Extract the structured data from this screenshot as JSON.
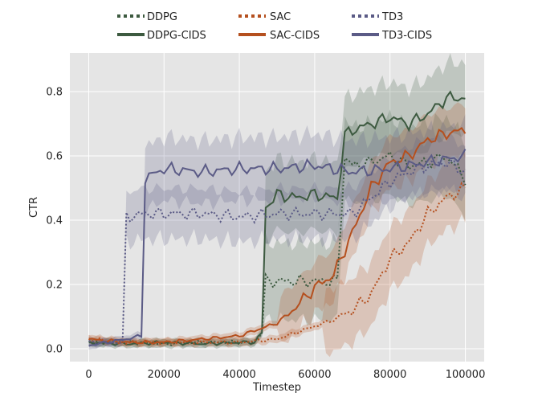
{
  "chart_data": {
    "type": "line",
    "title": "",
    "xlabel": "Timestep",
    "ylabel": "CTR",
    "xlim": [
      -5000,
      105000
    ],
    "ylim": [
      -0.04,
      0.92
    ],
    "xticks": [
      0,
      20000,
      40000,
      60000,
      80000,
      100000
    ],
    "xtick_labels": [
      "0",
      "20000",
      "40000",
      "60000",
      "80000",
      "100000"
    ],
    "yticks": [
      0.0,
      0.2,
      0.4,
      0.6,
      0.8
    ],
    "ytick_labels": [
      "0.0",
      "0.2",
      "0.4",
      "0.6",
      "0.8"
    ],
    "grid": true,
    "legend_position": "top-center",
    "series": [
      {
        "name": "DDPG",
        "color": "#3d5a40",
        "style": "dotted",
        "points": [
          [
            0,
            0.02
          ],
          [
            10000,
            0.02
          ],
          [
            20000,
            0.015
          ],
          [
            30000,
            0.02
          ],
          [
            40000,
            0.02
          ],
          [
            44000,
            0.02
          ],
          [
            46000,
            0.05
          ],
          [
            47000,
            0.21
          ],
          [
            50000,
            0.21
          ],
          [
            55000,
            0.21
          ],
          [
            60000,
            0.21
          ],
          [
            65000,
            0.21
          ],
          [
            66500,
            0.21
          ],
          [
            67500,
            0.6
          ],
          [
            70000,
            0.57
          ],
          [
            75000,
            0.58
          ],
          [
            80000,
            0.6
          ],
          [
            85000,
            0.57
          ],
          [
            90000,
            0.58
          ],
          [
            95000,
            0.6
          ],
          [
            100000,
            0.53
          ]
        ],
        "band": 0.12
      },
      {
        "name": "DDPG-CIDS",
        "color": "#3d5a40",
        "style": "solid",
        "points": [
          [
            0,
            0.02
          ],
          [
            10000,
            0.015
          ],
          [
            20000,
            0.02
          ],
          [
            30000,
            0.015
          ],
          [
            40000,
            0.02
          ],
          [
            44000,
            0.02
          ],
          [
            46000,
            0.05
          ],
          [
            47000,
            0.44
          ],
          [
            50000,
            0.48
          ],
          [
            55000,
            0.47
          ],
          [
            60000,
            0.48
          ],
          [
            65000,
            0.47
          ],
          [
            66500,
            0.47
          ],
          [
            67500,
            0.66
          ],
          [
            70000,
            0.68
          ],
          [
            75000,
            0.7
          ],
          [
            80000,
            0.72
          ],
          [
            85000,
            0.7
          ],
          [
            90000,
            0.73
          ],
          [
            95000,
            0.78
          ],
          [
            100000,
            0.78
          ]
        ],
        "band": 0.11
      },
      {
        "name": "SAC",
        "color": "#b5501f",
        "style": "dotted",
        "points": [
          [
            0,
            0.03
          ],
          [
            10000,
            0.02
          ],
          [
            20000,
            0.02
          ],
          [
            30000,
            0.02
          ],
          [
            40000,
            0.02
          ],
          [
            50000,
            0.03
          ],
          [
            55000,
            0.05
          ],
          [
            60000,
            0.07
          ],
          [
            65000,
            0.09
          ],
          [
            70000,
            0.12
          ],
          [
            75000,
            0.17
          ],
          [
            80000,
            0.28
          ],
          [
            85000,
            0.33
          ],
          [
            90000,
            0.42
          ],
          [
            95000,
            0.47
          ],
          [
            100000,
            0.5
          ]
        ],
        "band": 0.1
      },
      {
        "name": "SAC-CIDS",
        "color": "#b5501f",
        "style": "solid",
        "points": [
          [
            0,
            0.03
          ],
          [
            10000,
            0.02
          ],
          [
            20000,
            0.02
          ],
          [
            30000,
            0.03
          ],
          [
            40000,
            0.04
          ],
          [
            45000,
            0.06
          ],
          [
            50000,
            0.08
          ],
          [
            55000,
            0.13
          ],
          [
            60000,
            0.19
          ],
          [
            65000,
            0.23
          ],
          [
            70000,
            0.36
          ],
          [
            75000,
            0.5
          ],
          [
            80000,
            0.58
          ],
          [
            85000,
            0.6
          ],
          [
            90000,
            0.65
          ],
          [
            95000,
            0.67
          ],
          [
            100000,
            0.68
          ]
        ],
        "band": 0.08
      },
      {
        "name": "TD3",
        "color": "#5b5b86",
        "style": "dotted",
        "points": [
          [
            0,
            0.02
          ],
          [
            5000,
            0.02
          ],
          [
            9000,
            0.02
          ],
          [
            10000,
            0.41
          ],
          [
            15000,
            0.42
          ],
          [
            20000,
            0.42
          ],
          [
            30000,
            0.42
          ],
          [
            40000,
            0.41
          ],
          [
            50000,
            0.42
          ],
          [
            60000,
            0.42
          ],
          [
            70000,
            0.42
          ],
          [
            80000,
            0.52
          ],
          [
            85000,
            0.55
          ],
          [
            90000,
            0.57
          ],
          [
            95000,
            0.58
          ],
          [
            100000,
            0.55
          ]
        ],
        "band": 0.08
      },
      {
        "name": "TD3-CIDS",
        "color": "#5b5b86",
        "style": "solid",
        "points": [
          [
            0,
            0.01
          ],
          [
            5000,
            0.02
          ],
          [
            10000,
            0.03
          ],
          [
            14000,
            0.04
          ],
          [
            15000,
            0.53
          ],
          [
            20000,
            0.56
          ],
          [
            30000,
            0.55
          ],
          [
            40000,
            0.56
          ],
          [
            50000,
            0.56
          ],
          [
            60000,
            0.57
          ],
          [
            70000,
            0.55
          ],
          [
            80000,
            0.56
          ],
          [
            90000,
            0.58
          ],
          [
            100000,
            0.6
          ]
        ],
        "band": 0.1
      }
    ]
  }
}
